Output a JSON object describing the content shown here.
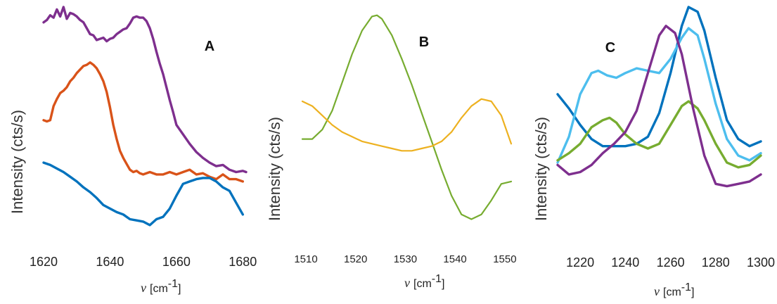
{
  "chart_data": [
    {
      "panel_label": "A",
      "type": "line",
      "ylabel": "Intensity (cts/s)",
      "xlabel_symbol": "ν",
      "xlabel_unit": "[cm",
      "xlabel_exp": "-1",
      "xlabel_close": "]",
      "xlim": [
        1620,
        1681
      ],
      "ylim": [
        0,
        1
      ],
      "xticks": [
        "1620",
        "1640",
        "1660",
        "1680"
      ],
      "grid": false,
      "series": [
        {
          "color": "#7e2f8e",
          "x": [
            1620,
            1621,
            1622,
            1623,
            1624,
            1625,
            1626,
            1627,
            1628,
            1629,
            1630,
            1631,
            1632,
            1633,
            1634,
            1635,
            1636,
            1637,
            1638,
            1639,
            1640,
            1641,
            1642,
            1643,
            1644,
            1645,
            1646,
            1647,
            1648,
            1649,
            1650,
            1651,
            1652,
            1653,
            1654,
            1655,
            1656,
            1657,
            1658,
            1659,
            1660,
            1662,
            1664,
            1666,
            1668,
            1670,
            1672,
            1674,
            1676,
            1678,
            1680,
            1681
          ],
          "y": [
            0.935,
            0.945,
            0.965,
            0.955,
            0.99,
            0.96,
            1.0,
            0.95,
            0.975,
            0.97,
            0.96,
            0.945,
            0.935,
            0.91,
            0.885,
            0.88,
            0.86,
            0.865,
            0.87,
            0.855,
            0.865,
            0.87,
            0.885,
            0.895,
            0.905,
            0.91,
            0.93,
            0.955,
            0.96,
            0.955,
            0.955,
            0.94,
            0.91,
            0.865,
            0.81,
            0.76,
            0.715,
            0.66,
            0.605,
            0.555,
            0.5,
            0.46,
            0.42,
            0.385,
            0.36,
            0.34,
            0.325,
            0.33,
            0.31,
            0.3,
            0.305,
            0.3
          ]
        },
        {
          "color": "#d95319",
          "x": [
            1620,
            1621,
            1622,
            1623,
            1624,
            1625,
            1626,
            1627,
            1628,
            1629,
            1630,
            1631,
            1632,
            1633,
            1634,
            1635,
            1636,
            1637,
            1638,
            1639,
            1640,
            1641,
            1642,
            1643,
            1644,
            1645,
            1646,
            1647,
            1648,
            1649,
            1650,
            1652,
            1654,
            1656,
            1658,
            1660,
            1662,
            1664,
            1666,
            1668,
            1670,
            1672,
            1674,
            1676,
            1678,
            1680
          ],
          "y": [
            0.52,
            0.515,
            0.52,
            0.58,
            0.61,
            0.635,
            0.645,
            0.66,
            0.685,
            0.7,
            0.72,
            0.735,
            0.75,
            0.755,
            0.765,
            0.755,
            0.74,
            0.715,
            0.685,
            0.64,
            0.575,
            0.5,
            0.44,
            0.39,
            0.36,
            0.335,
            0.31,
            0.3,
            0.305,
            0.295,
            0.29,
            0.3,
            0.29,
            0.29,
            0.3,
            0.29,
            0.3,
            0.31,
            0.29,
            0.295,
            0.28,
            0.27,
            0.29,
            0.27,
            0.27,
            0.26
          ]
        },
        {
          "color": "#0072bd",
          "x": [
            1620,
            1622,
            1624,
            1626,
            1628,
            1630,
            1632,
            1634,
            1636,
            1638,
            1640,
            1642,
            1644,
            1646,
            1648,
            1650,
            1652,
            1654,
            1656,
            1658,
            1660,
            1662,
            1664,
            1666,
            1668,
            1670,
            1672,
            1674,
            1676,
            1678,
            1680
          ],
          "y": [
            0.34,
            0.33,
            0.315,
            0.3,
            0.28,
            0.26,
            0.235,
            0.215,
            0.19,
            0.16,
            0.145,
            0.13,
            0.12,
            0.1,
            0.095,
            0.09,
            0.075,
            0.1,
            0.11,
            0.145,
            0.2,
            0.25,
            0.26,
            0.27,
            0.275,
            0.275,
            0.26,
            0.235,
            0.22,
            0.17,
            0.12
          ]
        }
      ]
    },
    {
      "panel_label": "B",
      "type": "line",
      "ylabel": "Intensity (cts/s)",
      "xlabel_symbol": "ν",
      "xlabel_unit": "[cm",
      "xlabel_exp": "-1",
      "xlabel_close": "]",
      "xlim": [
        1510,
        1552
      ],
      "ylim": [
        0,
        1
      ],
      "xticks": [
        "1510",
        "1520",
        "1530",
        "1540",
        "1550"
      ],
      "grid": false,
      "series": [
        {
          "color": "#77ac30",
          "x": [
            1510,
            1512,
            1514,
            1516,
            1518,
            1520,
            1522,
            1524,
            1525,
            1526,
            1528,
            1530,
            1532,
            1534,
            1536,
            1538,
            1540,
            1542,
            1544,
            1546,
            1548,
            1550,
            1552
          ],
          "y": [
            0.44,
            0.44,
            0.48,
            0.56,
            0.68,
            0.8,
            0.9,
            0.96,
            0.965,
            0.95,
            0.88,
            0.78,
            0.67,
            0.55,
            0.43,
            0.31,
            0.2,
            0.12,
            0.1,
            0.12,
            0.18,
            0.25,
            0.26
          ]
        },
        {
          "color": "#edb120",
          "x": [
            1510,
            1512,
            1514,
            1516,
            1518,
            1520,
            1522,
            1524,
            1526,
            1528,
            1530,
            1532,
            1534,
            1536,
            1538,
            1540,
            1542,
            1544,
            1546,
            1548,
            1550,
            1552
          ],
          "y": [
            0.6,
            0.58,
            0.54,
            0.5,
            0.47,
            0.45,
            0.43,
            0.42,
            0.41,
            0.4,
            0.39,
            0.39,
            0.4,
            0.41,
            0.43,
            0.47,
            0.53,
            0.58,
            0.61,
            0.6,
            0.54,
            0.42
          ]
        }
      ]
    },
    {
      "panel_label": "C",
      "type": "line",
      "ylabel": "Intensity (cts/s)",
      "xlabel_symbol": "ν",
      "xlabel_unit": "[cm",
      "xlabel_exp": "-1",
      "xlabel_close": "]",
      "xlim": [
        1210,
        1300
      ],
      "ylim": [
        0,
        1
      ],
      "xticks": [
        "1220",
        "1240",
        "1260",
        "1280",
        "1300"
      ],
      "grid": false,
      "series": [
        {
          "color": "#0072bd",
          "x": [
            1210,
            1215,
            1220,
            1225,
            1230,
            1235,
            1240,
            1245,
            1250,
            1255,
            1260,
            1265,
            1268,
            1272,
            1275,
            1280,
            1285,
            1290,
            1295,
            1300
          ],
          "y": [
            0.63,
            0.57,
            0.5,
            0.44,
            0.41,
            0.41,
            0.41,
            0.42,
            0.45,
            0.55,
            0.72,
            0.92,
            1.0,
            0.98,
            0.9,
            0.7,
            0.52,
            0.44,
            0.41,
            0.43
          ]
        },
        {
          "color": "#4dbeee",
          "x": [
            1210,
            1215,
            1220,
            1225,
            1228,
            1232,
            1236,
            1240,
            1245,
            1250,
            1255,
            1260,
            1265,
            1268,
            1272,
            1275,
            1280,
            1285,
            1290,
            1295,
            1300
          ],
          "y": [
            0.34,
            0.45,
            0.63,
            0.72,
            0.73,
            0.71,
            0.7,
            0.72,
            0.74,
            0.73,
            0.72,
            0.78,
            0.87,
            0.91,
            0.88,
            0.78,
            0.59,
            0.44,
            0.37,
            0.35,
            0.38
          ]
        },
        {
          "color": "#77ac30",
          "x": [
            1210,
            1215,
            1220,
            1225,
            1230,
            1233,
            1236,
            1240,
            1245,
            1250,
            1255,
            1260,
            1265,
            1268,
            1272,
            1275,
            1280,
            1285,
            1290,
            1295,
            1300
          ],
          "y": [
            0.35,
            0.38,
            0.42,
            0.49,
            0.52,
            0.53,
            0.51,
            0.46,
            0.42,
            0.4,
            0.42,
            0.5,
            0.58,
            0.6,
            0.57,
            0.52,
            0.42,
            0.34,
            0.32,
            0.33,
            0.37
          ]
        },
        {
          "color": "#7e2f8e",
          "x": [
            1210,
            1215,
            1220,
            1225,
            1230,
            1235,
            1240,
            1245,
            1250,
            1255,
            1258,
            1262,
            1265,
            1270,
            1275,
            1280,
            1285,
            1290,
            1295,
            1300
          ],
          "y": [
            0.33,
            0.29,
            0.3,
            0.33,
            0.38,
            0.42,
            0.47,
            0.56,
            0.72,
            0.88,
            0.92,
            0.89,
            0.8,
            0.57,
            0.37,
            0.25,
            0.24,
            0.25,
            0.26,
            0.29
          ]
        }
      ]
    }
  ]
}
